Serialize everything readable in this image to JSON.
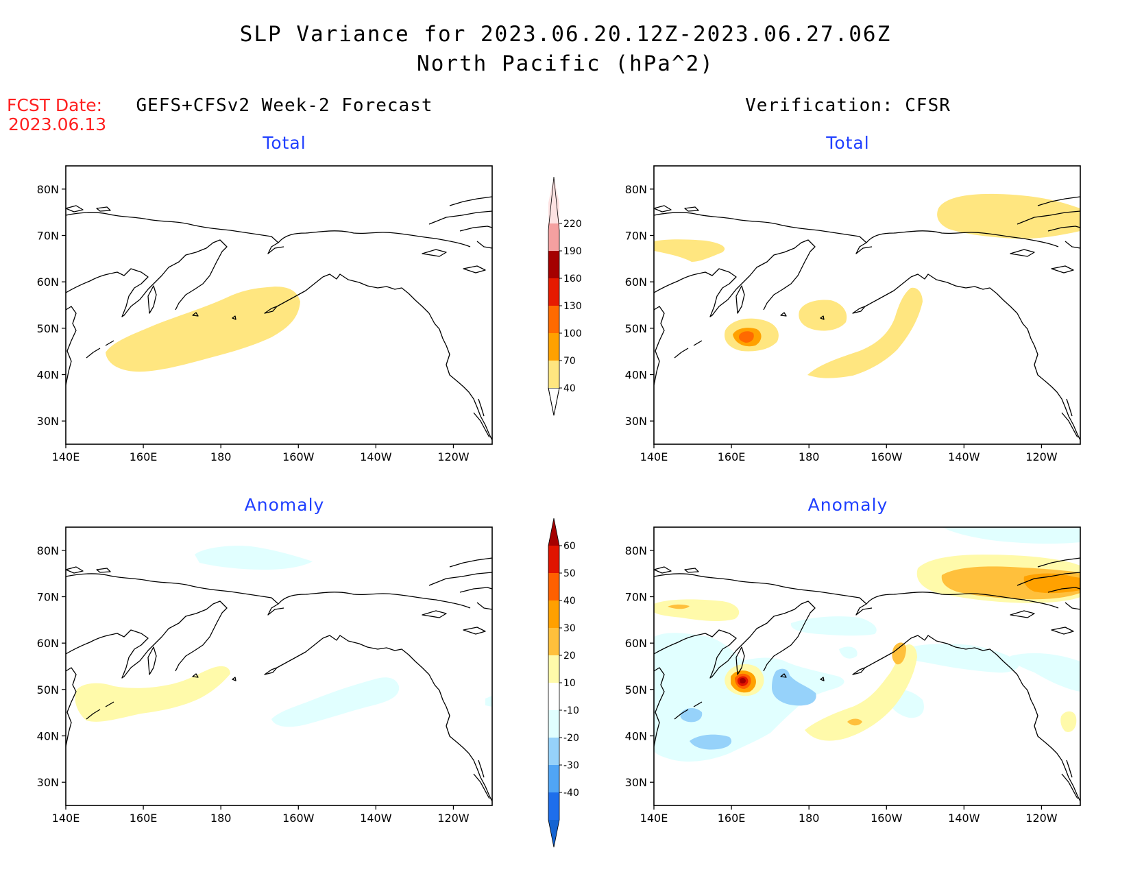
{
  "title": {
    "line1": "SLP Variance for 2023.06.20.12Z-2023.06.27.06Z",
    "line2": "North Pacific (hPa^2)"
  },
  "forecast_date": {
    "label": "FCST Date:",
    "value": "2023.06.13"
  },
  "left_header": "GEFS+CFSv2 Week-2 Forecast",
  "right_header": "Verification: CFSR",
  "axes": {
    "lon_ticks": [
      "140E",
      "160E",
      "180",
      "160W",
      "140W",
      "120W"
    ],
    "lat_ticks": [
      "30N",
      "40N",
      "50N",
      "60N",
      "70N",
      "80N"
    ]
  },
  "panels": [
    {
      "id": "forecast-total",
      "label": "Total"
    },
    {
      "id": "verify-total",
      "label": "Total"
    },
    {
      "id": "forecast-anomaly",
      "label": "Anomaly"
    },
    {
      "id": "verify-anomaly",
      "label": "Anomaly"
    }
  ],
  "colorbars": {
    "total": {
      "levels": [
        "40",
        "70",
        "100",
        "130",
        "160",
        "190",
        "220"
      ],
      "colors": [
        "#ffe680",
        "#ffa100",
        "#ff6a00",
        "#e61a00",
        "#a50000",
        "#f4a0a0",
        "#fde2e2"
      ]
    },
    "anomaly": {
      "levels": [
        "-40",
        "-30",
        "-20",
        "-10",
        "10",
        "20",
        "30",
        "40",
        "50",
        "60"
      ],
      "colors": [
        "#1464d2",
        "#1e6eeb",
        "#50a5f5",
        "#96d2fa",
        "#e1ffff",
        "#ffffff",
        "#fffaaa",
        "#ffc03c",
        "#ffa000",
        "#ff6000",
        "#e11400",
        "#a50000"
      ]
    }
  },
  "colors": {
    "yellow": "#ffe680",
    "orange": "#ffa100",
    "red_orange": "#ff6a00",
    "dark_red": "#a50000",
    "light_yellow": "#fffaaa",
    "light_orange": "#ffc03c",
    "light_cyan": "#e1ffff",
    "light_blue": "#96d2fa",
    "label_blue": "#1f3fff",
    "label_red": "#ff2020"
  }
}
